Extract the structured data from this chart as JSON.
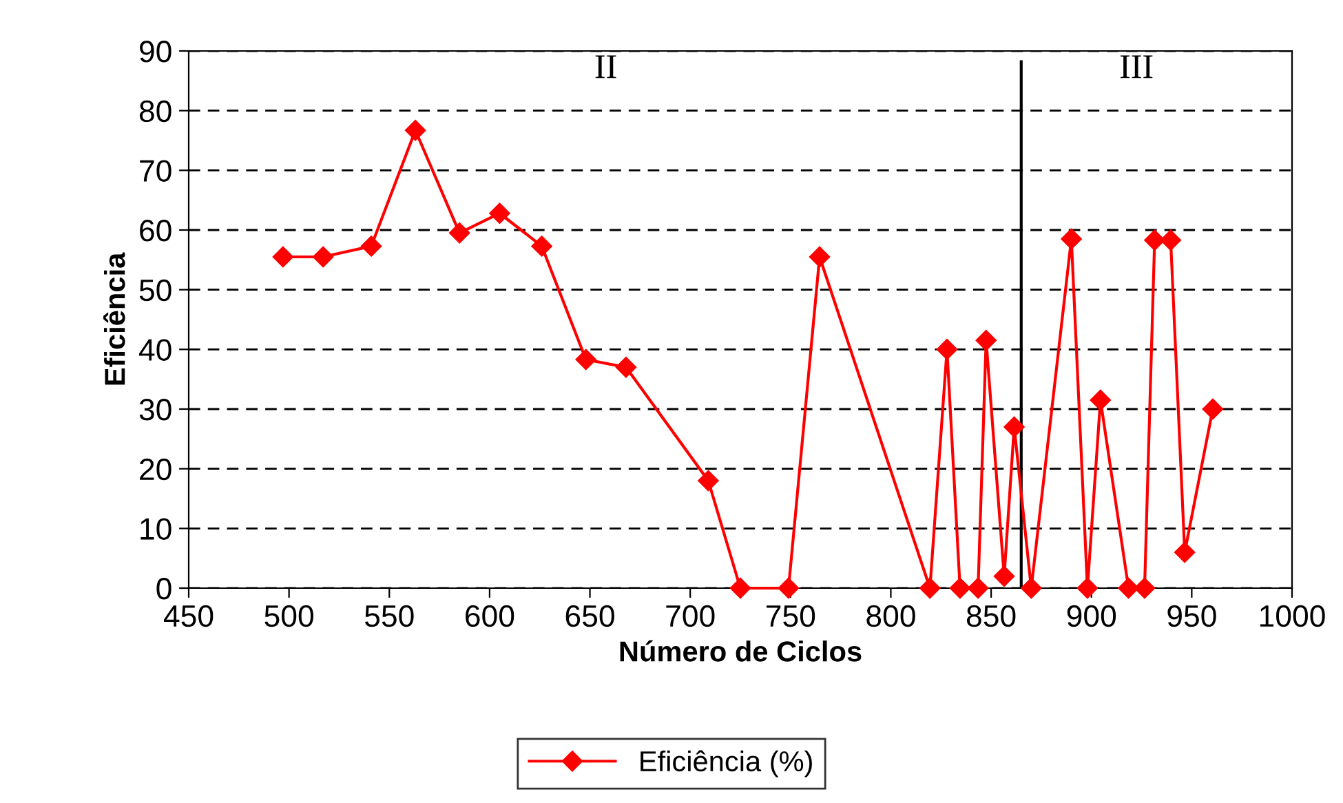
{
  "chart_data": {
    "type": "line",
    "xlabel": "Número de Ciclos",
    "ylabel": "Eficiência",
    "x": [
      497,
      517,
      541,
      563,
      585,
      605,
      626,
      648,
      668,
      709,
      725,
      749,
      764.5,
      819.5,
      828,
      834.5,
      843.5,
      847.5,
      856.5,
      861.5,
      870,
      890,
      898,
      904.5,
      918.5,
      926.5,
      931.5,
      939.5,
      946.5,
      960.5
    ],
    "series": [
      {
        "name": "Eficiência (%)",
        "color": "#ff0000",
        "values": [
          55.5,
          55.5,
          57.3,
          76.7,
          59.5,
          62.8,
          57.3,
          38.3,
          37,
          18,
          0,
          0,
          55.5,
          0,
          40,
          0,
          0,
          41.5,
          2,
          27,
          0,
          58.5,
          0,
          31.5,
          0,
          0,
          58.3,
          58.3,
          6,
          30
        ]
      }
    ],
    "xlim": [
      450,
      1000
    ],
    "xticks": [
      450,
      500,
      550,
      600,
      650,
      700,
      750,
      800,
      850,
      900,
      950,
      1000
    ],
    "ylim": [
      0,
      90
    ],
    "yticks": [
      0,
      10,
      20,
      30,
      40,
      50,
      60,
      70,
      80,
      90
    ],
    "grid": "y",
    "legend": "bottom",
    "marker": "diamond",
    "line_style": "solid",
    "ref_lines": [
      {
        "axis": "x",
        "value": 865,
        "color": "#000000"
      }
    ],
    "annotations": [
      "II",
      "III"
    ]
  }
}
